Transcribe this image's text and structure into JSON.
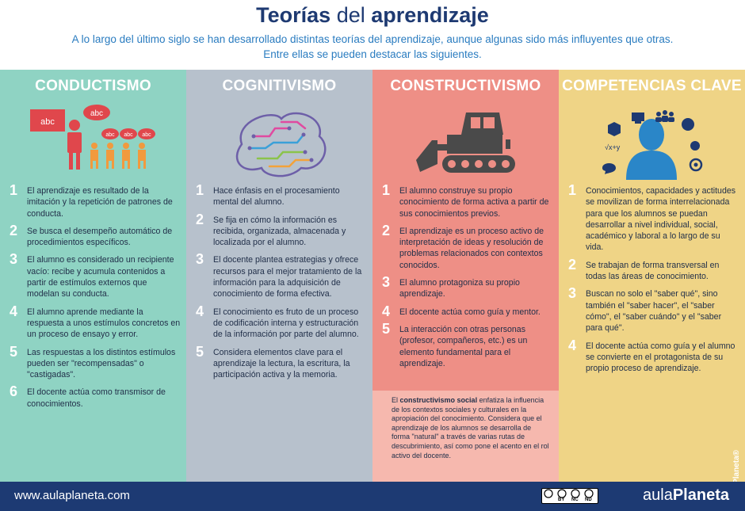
{
  "header": {
    "title_part1": "Teorías",
    "title_part2": "del",
    "title_part3": "aprendizaje",
    "intro_line1": "A lo largo del último siglo se han desarrollado distintas teorías del aprendizaje, aunque algunas sido más influyentes que otras.",
    "intro_line2": "Entre ellas se pueden destacar las siguientes."
  },
  "columns": [
    {
      "title": "CONDUCTISMO",
      "illustration_labels": [
        "abc",
        "abc",
        "abc",
        "abc",
        "abc"
      ],
      "items": [
        {
          "num": "1",
          "text": "El aprendizaje es resultado de la imitación y la repetición de patrones de conducta."
        },
        {
          "num": "2",
          "text": "Se busca el desempeño automático de procedimientos específicos."
        },
        {
          "num": "3",
          "text": "El alumno es considerado un recipiente vacío: recibe y acumula contenidos a partir de estímulos externos que modelan su conducta."
        },
        {
          "num": "4",
          "text": "El alumno aprende mediante la respuesta a unos estímulos concretos en un proceso de ensayo y error."
        },
        {
          "num": "5",
          "text": "Las respuestas a los distintos estímulos pueden ser \"recompensadas\" o \"castigadas\"."
        },
        {
          "num": "6",
          "text": "El docente actúa como transmisor de conocimientos."
        }
      ]
    },
    {
      "title": "COGNITIVISMO",
      "items": [
        {
          "num": "1",
          "text": "Hace énfasis en el procesamiento mental del alumno."
        },
        {
          "num": "2",
          "text": "Se fija en cómo la información es recibida, organizada, almacenada y localizada por el alumno."
        },
        {
          "num": "3",
          "text": "El docente plantea estrategias y ofrece recursos para el mejor tratamiento de la información para la adquisición de conocimiento de forma efectiva."
        },
        {
          "num": "4",
          "text": "El conocimiento es fruto de un proceso de codificación interna y estructuración de la información por parte del alumno."
        },
        {
          "num": "5",
          "text": "Considera elementos clave para el aprendizaje la lectura, la escritura, la participación activa y la memoria."
        }
      ]
    },
    {
      "title": "CONSTRUCTIVISMO",
      "items": [
        {
          "num": "1",
          "text": "El alumno construye su propio conocimiento de forma activa a partir de sus conocimientos previos."
        },
        {
          "num": "2",
          "text": "El aprendizaje es un proceso activo de interpretación de ideas y resolución de problemas relacionados con contextos conocidos."
        },
        {
          "num": "3",
          "text": "El alumno protagoniza su propio aprendizaje."
        },
        {
          "num": "4",
          "text": "El docente actúa como guía y mentor."
        },
        {
          "num": "5",
          "text": "La interacción con otras personas (profesor, compañeros, etc.) es un elemento fundamental para el aprendizaje."
        }
      ],
      "social_intro": "El",
      "social_strong": "constructivismo social",
      "social_text": "enfatiza la influencia de los contextos sociales y culturales en la apropiación del conocimiento. Considera que el aprendizaje de los alumnos se desarrolla de forma \"natural\" a través de varias rutas de descubrimiento, así como pone el acento en el rol activo del docente."
    },
    {
      "title": "COMPETENCIAS CLAVE",
      "illustration_labels": [
        "√x+y"
      ],
      "items": [
        {
          "num": "1",
          "text": "Conocimientos, capacidades y actitudes se movilizan de forma interrelacionada para que los alumnos se puedan desarrollar a nivel individual, social, académico y laboral a lo largo de su vida."
        },
        {
          "num": "2",
          "text": "Se trabajan de forma transversal en todas las áreas de conocimiento."
        },
        {
          "num": "3",
          "text": "Buscan no solo el \"saber qué\", sino también el \"saber hacer\", el \"saber cómo\", el \"saber cuándo\" y el \"saber para qué\"."
        },
        {
          "num": "4",
          "text": "El docente actúa como guía y el alumno se convierte en el protagonista de su propio proceso de aprendizaje."
        }
      ],
      "vertical_brand": "aulaPlaneta®"
    }
  ],
  "footer": {
    "url": "www.aulaplaneta.com",
    "license_labels": [
      "BY",
      "NC",
      "ND"
    ],
    "logo_part1": "aula",
    "logo_part2": "Planeta"
  },
  "colors": {
    "conductismo": "#8fd3c3",
    "cognitivismo": "#b7c1cc",
    "constructivismo": "#ee8f86",
    "competencias": "#efd486",
    "footer": "#1d3a73",
    "title": "#1e3a72",
    "intro": "#2a7cc0"
  }
}
